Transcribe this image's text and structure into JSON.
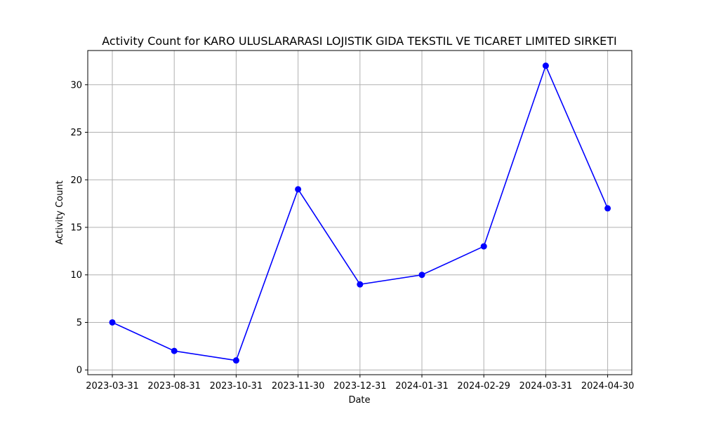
{
  "chart_data": {
    "type": "line",
    "title": "Activity Count for KARO ULUSLARARASI LOJISTIK GIDA TEKSTIL VE TICARET LIMITED SIRKETI",
    "xlabel": "Date",
    "ylabel": "Activity Count",
    "categories": [
      "2023-03-31",
      "2023-08-31",
      "2023-10-31",
      "2023-11-30",
      "2023-12-31",
      "2024-01-31",
      "2024-02-29",
      "2024-03-31",
      "2024-04-30"
    ],
    "values": [
      5,
      2,
      1,
      19,
      9,
      10,
      13,
      32,
      17
    ],
    "ylim": [
      -0.5,
      33.6
    ],
    "yticks": [
      0,
      5,
      10,
      15,
      20,
      25,
      30
    ],
    "grid": true,
    "line_color": "#0000ff",
    "marker": "circle"
  }
}
